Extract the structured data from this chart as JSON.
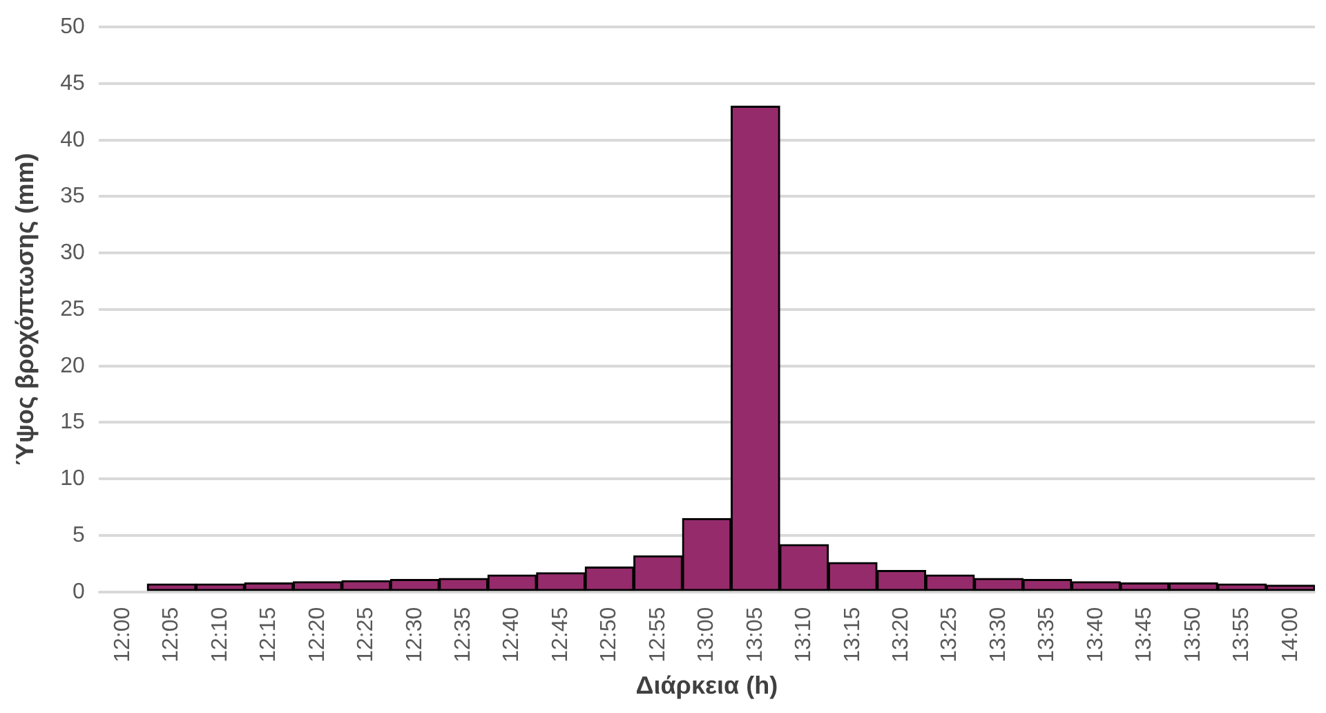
{
  "chart_data": {
    "type": "bar",
    "xlabel": "Διάρκεια (h)",
    "ylabel": "Ύψος βροχόπτωσης (mm)",
    "categories": [
      "12:00",
      "12:05",
      "12:10",
      "12:15",
      "12:20",
      "12:25",
      "12:30",
      "12:35",
      "12:40",
      "12:45",
      "12:50",
      "12:55",
      "13:00",
      "13:05",
      "13:10",
      "13:15",
      "13:20",
      "13:25",
      "13:30",
      "13:35",
      "13:40",
      "13:45",
      "13:50",
      "13:55",
      "14:00"
    ],
    "values": [
      null,
      0.7,
      0.7,
      0.8,
      0.9,
      1.0,
      1.1,
      1.2,
      1.5,
      1.7,
      2.2,
      3.2,
      6.5,
      43,
      4.2,
      2.6,
      1.9,
      1.5,
      1.2,
      1.1,
      0.9,
      0.8,
      0.8,
      0.7,
      0.6
    ],
    "color": "#952b6b",
    "ylim": [
      0,
      50
    ],
    "yticks": [
      0,
      5,
      10,
      15,
      20,
      25,
      30,
      35,
      40,
      45,
      50
    ],
    "grid": "y",
    "legend": false
  }
}
